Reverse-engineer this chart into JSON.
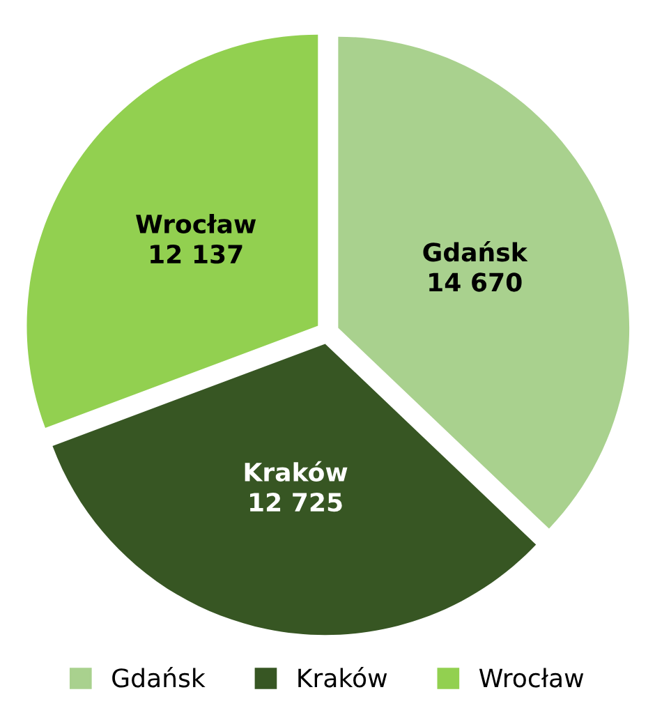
{
  "chart_data": {
    "type": "pie",
    "categories": [
      "Gdańsk",
      "Kraków",
      "Wrocław"
    ],
    "values": [
      14670,
      12725,
      12137
    ],
    "value_labels": [
      "14 670",
      "12 725",
      "12 137"
    ],
    "colors": [
      "#a9d18e",
      "#375623",
      "#92d050"
    ],
    "legend": "bottom"
  }
}
